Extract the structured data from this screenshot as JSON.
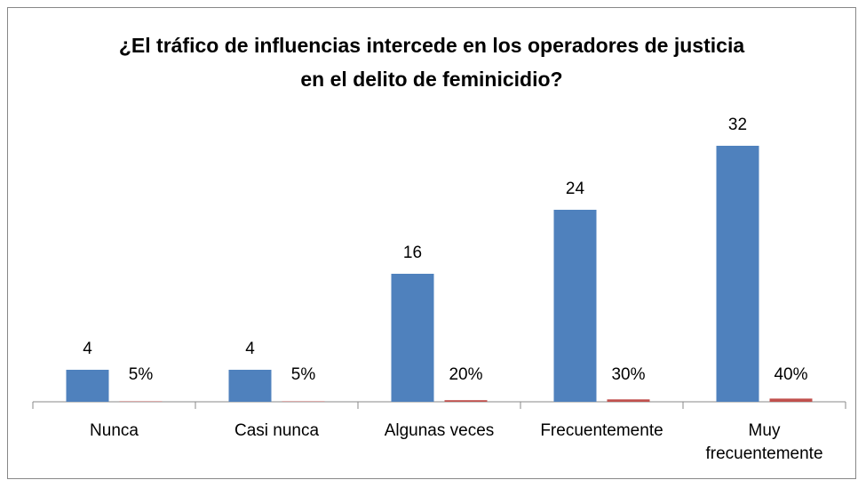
{
  "chart_data": {
    "type": "bar",
    "title": "¿El tráfico de influencias intercede en los operadores de justicia en el delito de feminicidio?",
    "categories": [
      "Nunca",
      "Casi nunca",
      "Algunas veces",
      "Frecuentemente",
      "Muy frecuentemente"
    ],
    "series": [
      {
        "color": "#4f81bd",
        "values": [
          4,
          4,
          16,
          24,
          32
        ]
      },
      {
        "color": "#c0504d",
        "values": [
          0.05,
          0.05,
          0.2,
          0.3,
          0.4
        ],
        "value_labels": [
          "5%",
          "5%",
          "20%",
          "30%",
          "40%"
        ]
      }
    ],
    "ylim": [
      0,
      35
    ]
  }
}
